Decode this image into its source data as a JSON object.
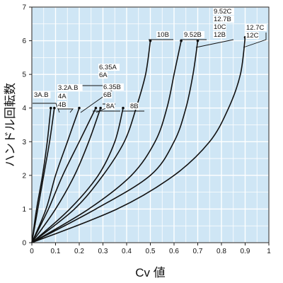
{
  "chart_data": {
    "type": "line",
    "title": "",
    "xlabel": "Cv 値",
    "ylabel": "ハンドル回転数",
    "xlim": [
      0,
      1
    ],
    "ylim": [
      0,
      7
    ],
    "grid": true,
    "x_ticks": [
      "0",
      "0.1",
      "0.2",
      "0.3",
      "0.4",
      "0.5",
      "0.6",
      "0.7",
      "0.8",
      "0.9",
      "1"
    ],
    "y_ticks": [
      "0",
      "1",
      "2",
      "3",
      "4",
      "5",
      "6",
      "7"
    ],
    "series": [
      {
        "name": "3A.B",
        "points": [
          [
            0,
            0
          ],
          [
            0.02,
            1
          ],
          [
            0.045,
            2
          ],
          [
            0.065,
            3
          ],
          [
            0.08,
            4
          ]
        ]
      },
      {
        "name": "3.2A.B 4A 4B",
        "points": [
          [
            0,
            0
          ],
          [
            0.025,
            1
          ],
          [
            0.05,
            2
          ],
          [
            0.075,
            3
          ],
          [
            0.095,
            4
          ]
        ]
      },
      {
        "name": "6.35A 6A",
        "points": [
          [
            0,
            0
          ],
          [
            0.06,
            1
          ],
          [
            0.1,
            2
          ],
          [
            0.15,
            3
          ],
          [
            0.2,
            4
          ]
        ]
      },
      {
        "name": "6.35B 6B",
        "points": [
          [
            0,
            0
          ],
          [
            0.07,
            1
          ],
          [
            0.13,
            2
          ],
          [
            0.2,
            3
          ],
          [
            0.27,
            4
          ]
        ]
      },
      {
        "name": "8A",
        "points": [
          [
            0,
            0
          ],
          [
            0.1,
            1
          ],
          [
            0.18,
            2
          ],
          [
            0.24,
            3
          ],
          [
            0.29,
            4
          ]
        ]
      },
      {
        "name": "8B",
        "points": [
          [
            0,
            0
          ],
          [
            0.16,
            1
          ],
          [
            0.28,
            2
          ],
          [
            0.35,
            3
          ],
          [
            0.385,
            4
          ]
        ]
      },
      {
        "name": "10B",
        "points": [
          [
            0,
            0
          ],
          [
            0.18,
            1
          ],
          [
            0.3,
            2
          ],
          [
            0.39,
            3
          ],
          [
            0.44,
            4
          ],
          [
            0.48,
            5
          ],
          [
            0.5,
            6
          ]
        ]
      },
      {
        "name": "9.52B",
        "points": [
          [
            0,
            0
          ],
          [
            0.24,
            1
          ],
          [
            0.42,
            2
          ],
          [
            0.52,
            3
          ],
          [
            0.57,
            4
          ],
          [
            0.6,
            5
          ],
          [
            0.63,
            6
          ]
        ]
      },
      {
        "name": "9.52C 12.7B 10C 12B",
        "points": [
          [
            0,
            0
          ],
          [
            0.27,
            1
          ],
          [
            0.5,
            2
          ],
          [
            0.6,
            3
          ],
          [
            0.65,
            4
          ],
          [
            0.68,
            5
          ],
          [
            0.7,
            6
          ]
        ]
      },
      {
        "name": "12.7C 12C",
        "points": [
          [
            0,
            0
          ],
          [
            0.36,
            1
          ],
          [
            0.6,
            2
          ],
          [
            0.75,
            3
          ],
          [
            0.83,
            4
          ],
          [
            0.88,
            5
          ],
          [
            0.9,
            6.1
          ]
        ]
      }
    ],
    "labels": [
      {
        "lines": [
          "3A.B"
        ],
        "series": "3A.B"
      },
      {
        "lines": [
          "3.2A.B",
          "4A",
          "4B"
        ],
        "series": "3.2A.B 4A 4B"
      },
      {
        "lines": [
          "6.35A",
          "6A"
        ],
        "series": "6.35A 6A"
      },
      {
        "lines": [
          "6.35B",
          "6B"
        ],
        "series": "6.35B 6B"
      },
      {
        "lines": [
          "8A"
        ],
        "series": "8A"
      },
      {
        "lines": [
          "8B"
        ],
        "series": "8B"
      },
      {
        "lines": [
          "10B"
        ],
        "series": "10B"
      },
      {
        "lines": [
          "9.52B"
        ],
        "series": "9.52B"
      },
      {
        "lines": [
          "9.52C",
          "12.7B",
          "10C",
          "12B"
        ],
        "series": "9.52C 12.7B 10C 12B"
      },
      {
        "lines": [
          "12.7C",
          "12C"
        ],
        "series": "12.7C 12C"
      }
    ]
  }
}
